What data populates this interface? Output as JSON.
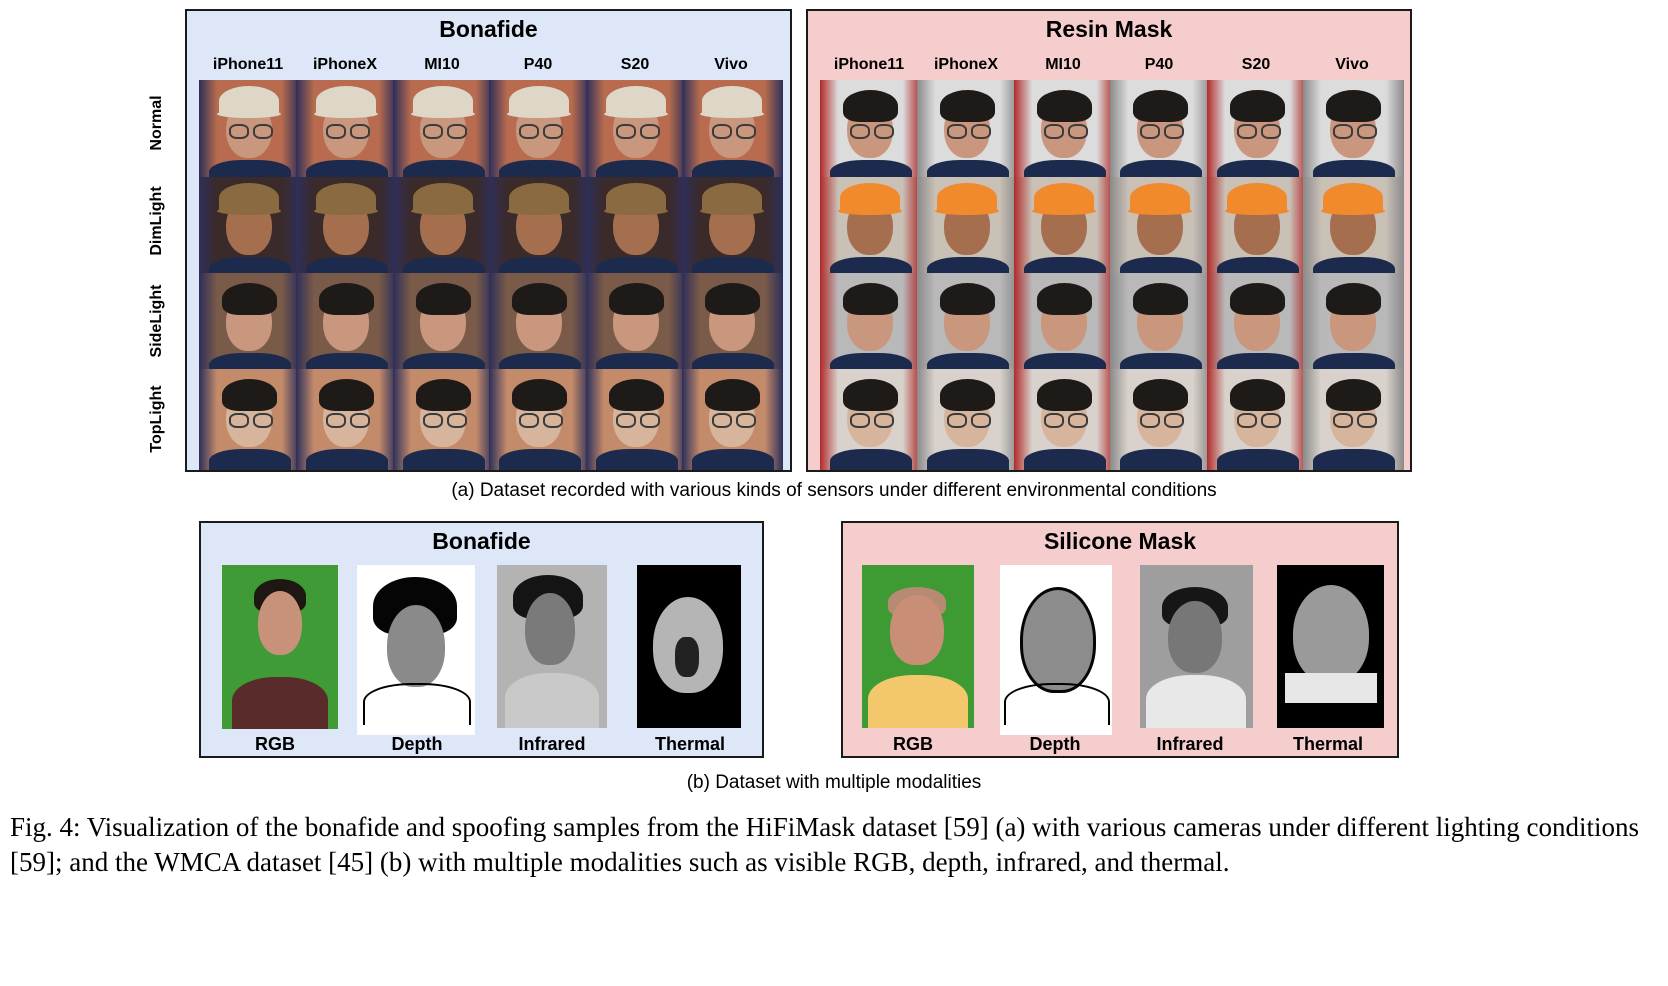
{
  "top_section": {
    "bonafide_title": "Bonafide",
    "mask_title": "Resin Mask",
    "cameras": [
      "iPhone11",
      "iPhoneX",
      "MI10",
      "P40",
      "S20",
      "Vivo"
    ],
    "conditions": [
      "Normal",
      "DimLight",
      "SideLight",
      "TopLight"
    ],
    "caption": "(a) Dataset recorded with various kinds of sensors under different environmental conditions"
  },
  "bottom_section": {
    "bonafide_title": "Bonafide",
    "mask_title": "Silicone Mask",
    "modalities": [
      "RGB",
      "Depth",
      "Infrared",
      "Thermal"
    ],
    "caption": "(b) Dataset with multiple modalities"
  },
  "figure_caption": "Fig. 4: Visualization of the bonafide and spoofing samples from the HiFiMask dataset [59] (a) with various cameras under different lighting conditions [59]; and the WMCA dataset [45] (b) with multiple modalities such as visible RGB, depth, infrared, and thermal.",
  "colors": {
    "bonafide_panel": "#dde7f8",
    "mask_panel": "#f6cdcd",
    "border": "#1a1a1a"
  }
}
